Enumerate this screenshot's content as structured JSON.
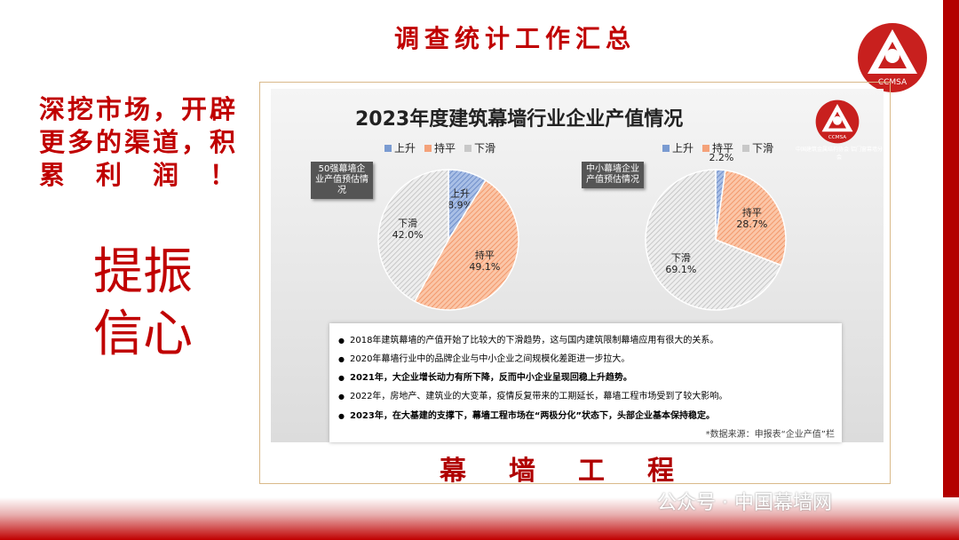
{
  "header": {
    "title": "调查统计工作汇总",
    "logo_text": "CCMSA"
  },
  "side": {
    "slogan": "深挖市场，开辟更多的渠道，积累　利　润　！",
    "big": "提振信心"
  },
  "footer": {
    "label": "幕墙工程",
    "watermark": "公众号 · 中国幕墙网"
  },
  "panel": {
    "logo_text": "CCMSA",
    "logo_subtitle": "中国建筑金属结构协会 铝门窗幕墙分会"
  },
  "chart_data": [
    {
      "type": "pie",
      "title": "2023年度建筑幕墙行业企业产值情况",
      "tag": "50强幕墙企业产值预估情况",
      "legend": [
        "上升",
        "持平",
        "下滑"
      ],
      "slices": [
        {
          "name": "上升",
          "value": 8.9,
          "label": "8.9%",
          "color": "#7a9bd1"
        },
        {
          "name": "持平",
          "value": 49.1,
          "label": "49.1%",
          "color": "#f4a27a"
        },
        {
          "name": "下滑",
          "value": 42.0,
          "label": "42.0%",
          "color": "#c8c8c8"
        }
      ]
    },
    {
      "type": "pie",
      "tag": "中小幕墙企业产值预估情况",
      "legend": [
        "上升",
        "持平",
        "下滑"
      ],
      "slices": [
        {
          "name": "上升",
          "value": 2.2,
          "label": "2.2%",
          "color": "#7a9bd1"
        },
        {
          "name": "持平",
          "value": 28.7,
          "label": "28.7%",
          "color": "#f4a27a"
        },
        {
          "name": "下滑",
          "value": 69.1,
          "label": "69.1%",
          "color": "#c8c8c8"
        }
      ]
    }
  ],
  "notes": [
    {
      "text": "2018年建筑幕墙的产值开始了比较大的下滑趋势，这与国内建筑限制幕墙应用有很大的关系。",
      "color": "#444"
    },
    {
      "text": "2020年幕墙行业中的品牌企业与中小企业之间规模化差距进一步拉大。",
      "color": "#444"
    },
    {
      "text": "2021年，大企业增长动力有所下降，反而中小企业呈现回稳上升趋势。",
      "color": "#111"
    },
    {
      "text": "2022年，房地产、建筑业的大变革，疫情反复带来的工期延长，幕墙工程市场受到了较大影响。",
      "color": "#e00000"
    },
    {
      "text": "2023年，在大基建的支撑下，幕墙工程市场在“两极分化”状态下，头部企业基本保持稳定。",
      "color": "#e00000"
    }
  ],
  "source": "*数据来源：申报表“企业产值”栏"
}
